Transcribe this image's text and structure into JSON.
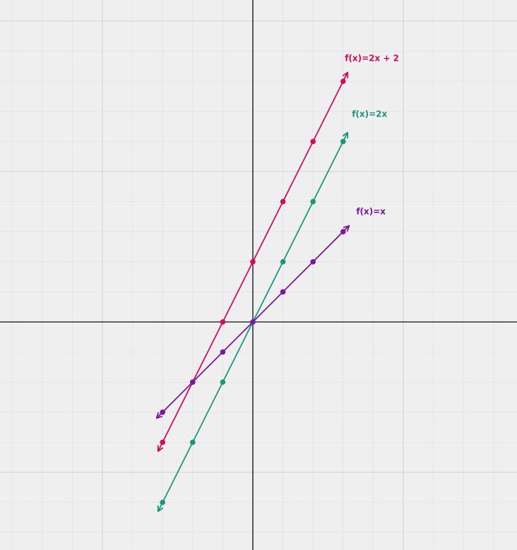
{
  "chart_data": {
    "type": "line",
    "title": "",
    "xlabel": "",
    "ylabel": "",
    "xlim": [
      -8.4,
      8.8
    ],
    "ylim": [
      -7.5,
      10.8
    ],
    "grid": true,
    "axis_color": "#333333",
    "grid_color_major": "#d6d6d6",
    "grid_color_minor": "#e3e3e3",
    "background": "#efefef",
    "series": [
      {
        "name": "f(x)=2x + 2",
        "color": "#cc0e5c",
        "points": [
          [
            -3,
            -4
          ],
          [
            -2,
            -2
          ],
          [
            -1,
            0
          ],
          [
            0,
            2
          ],
          [
            1,
            4
          ],
          [
            2,
            6
          ],
          [
            3,
            8
          ]
        ],
        "arrow_ends": [
          [
            -3.15,
            -4.3
          ],
          [
            3.15,
            8.3
          ]
        ]
      },
      {
        "name": "f(x)=2x",
        "color": "#1a9679",
        "points": [
          [
            -3,
            -6
          ],
          [
            -2,
            -4
          ],
          [
            -1,
            -2
          ],
          [
            0,
            0
          ],
          [
            1,
            2
          ],
          [
            2,
            4
          ],
          [
            3,
            6
          ]
        ],
        "arrow_ends": [
          [
            -3.15,
            -6.3
          ],
          [
            3.15,
            6.3
          ]
        ]
      },
      {
        "name": "f(x)=x",
        "color": "#7a16a0",
        "points": [
          [
            -3,
            -3
          ],
          [
            -2,
            -2
          ],
          [
            -1,
            -1
          ],
          [
            0,
            0
          ],
          [
            1,
            1
          ],
          [
            2,
            2
          ],
          [
            3,
            3
          ]
        ],
        "arrow_ends": [
          [
            -3.2,
            -3.2
          ],
          [
            3.2,
            3.2
          ]
        ]
      }
    ]
  }
}
